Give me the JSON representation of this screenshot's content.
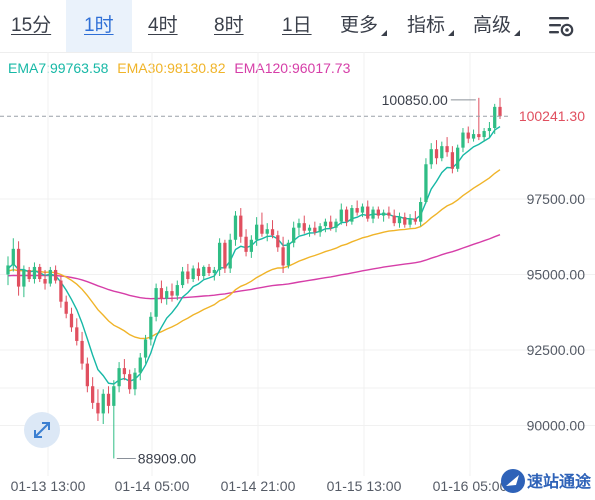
{
  "tabs": [
    {
      "label": "15分",
      "active": false
    },
    {
      "label": "1时",
      "active": true
    },
    {
      "label": "4时",
      "active": false
    },
    {
      "label": "8时",
      "active": false
    },
    {
      "label": "1日",
      "active": false
    },
    {
      "label": "更多",
      "active": false,
      "dropdown": true
    },
    {
      "label": "指标",
      "active": false,
      "dropdown": true
    },
    {
      "label": "高级",
      "active": false,
      "dropdown": true
    }
  ],
  "settings_icon": "chart-settings-icon",
  "ema": [
    {
      "label": "EMA7:99763.58",
      "color": "#17b8a6"
    },
    {
      "label": "EMA30:98130.82",
      "color": "#f0b429"
    },
    {
      "label": "EMA120:96017.73",
      "color": "#d63ea8"
    }
  ],
  "colors": {
    "up": "#2fbd85",
    "down": "#e04f5f",
    "accent": "#2f6fd6",
    "grid": "#f1f1f1"
  },
  "price_axis": {
    "labels": [
      "97500.00",
      "95000.00",
      "92500.00",
      "90000.00"
    ]
  },
  "time_axis": {
    "labels": [
      "01-13 13:00",
      "01-14 05:00",
      "01-14 21:00",
      "01-15 13:00",
      "01-16 05:00"
    ]
  },
  "high_label": "100850.00",
  "low_label": "88909.00",
  "current_price": "100241.30",
  "expand_icon": "expand-arrows-icon",
  "watermark": {
    "text": "速站通途",
    "logo": "rocket-logo-icon"
  },
  "chart_data": {
    "type": "candlestick",
    "y_axis": {
      "range": [
        89000,
        101500
      ]
    },
    "x_labels": [
      "01-13 13:00",
      "01-14 05:00",
      "01-14 21:00",
      "01-15 13:00",
      "01-16 05:00"
    ],
    "candles": [
      [
        95000,
        95600,
        94650,
        95300
      ],
      [
        95300,
        96200,
        95100,
        95850
      ],
      [
        95850,
        96100,
        94300,
        94600
      ],
      [
        94600,
        95300,
        94250,
        95150
      ],
      [
        95150,
        95250,
        94750,
        94850
      ],
      [
        94850,
        95400,
        94700,
        95250
      ],
      [
        95250,
        95350,
        94750,
        94850
      ],
      [
        94850,
        95150,
        94500,
        94700
      ],
      [
        94700,
        95250,
        94600,
        95150
      ],
      [
        95150,
        95300,
        94700,
        94800
      ],
      [
        94800,
        94950,
        93900,
        94100
      ],
      [
        94100,
        94300,
        93550,
        93700
      ],
      [
        93700,
        93900,
        93100,
        93250
      ],
      [
        93250,
        93550,
        92650,
        92800
      ],
      [
        92800,
        93100,
        91850,
        92050
      ],
      [
        92050,
        92250,
        91100,
        91300
      ],
      [
        91300,
        91600,
        90550,
        90750
      ],
      [
        90750,
        91200,
        90150,
        90400
      ],
      [
        90400,
        91200,
        90050,
        91050
      ],
      [
        91050,
        91300,
        90400,
        90650
      ],
      [
        90650,
        91500,
        88909,
        91300
      ],
      [
        91300,
        92100,
        91100,
        91900
      ],
      [
        91900,
        92200,
        91500,
        91700
      ],
      [
        91700,
        91850,
        91050,
        91200
      ],
      [
        91200,
        91900,
        91000,
        91750
      ],
      [
        91750,
        92400,
        91500,
        92250
      ],
      [
        92250,
        93000,
        92050,
        92850
      ],
      [
        92850,
        93750,
        92650,
        93600
      ],
      [
        93600,
        94700,
        93450,
        94550
      ],
      [
        94550,
        94800,
        94050,
        94200
      ],
      [
        94200,
        94600,
        94000,
        94450
      ],
      [
        94450,
        94700,
        94100,
        94300
      ],
      [
        94300,
        94800,
        94150,
        94650
      ],
      [
        94650,
        95250,
        94550,
        95100
      ],
      [
        95100,
        95350,
        94700,
        94850
      ],
      [
        94850,
        95300,
        94750,
        95200
      ],
      [
        95200,
        95400,
        94800,
        94950
      ],
      [
        94950,
        95300,
        94850,
        95250
      ],
      [
        95250,
        95350,
        94950,
        95050
      ],
      [
        95050,
        95250,
        94800,
        95150
      ],
      [
        95150,
        96200,
        94950,
        96050
      ],
      [
        96050,
        96150,
        95050,
        95200
      ],
      [
        95200,
        96350,
        95050,
        96150
      ],
      [
        96150,
        97100,
        95950,
        96950
      ],
      [
        96950,
        97200,
        96050,
        96250
      ],
      [
        96250,
        96500,
        95600,
        95750
      ],
      [
        95750,
        96300,
        95550,
        96150
      ],
      [
        96150,
        96900,
        95950,
        96650
      ],
      [
        96650,
        97050,
        96250,
        96350
      ],
      [
        96350,
        96700,
        96100,
        96500
      ],
      [
        96500,
        96800,
        96200,
        96300
      ],
      [
        96300,
        96450,
        95750,
        95900
      ],
      [
        95900,
        96250,
        95050,
        95300
      ],
      [
        95300,
        96150,
        95200,
        96050
      ],
      [
        96050,
        96750,
        95900,
        96550
      ],
      [
        96550,
        96850,
        96300,
        96700
      ],
      [
        96700,
        96950,
        96350,
        96450
      ],
      [
        96450,
        96650,
        96250,
        96550
      ],
      [
        96550,
        96750,
        96300,
        96400
      ],
      [
        96400,
        96700,
        96250,
        96600
      ],
      [
        96600,
        96850,
        96400,
        96750
      ],
      [
        96750,
        96950,
        96450,
        96550
      ],
      [
        96550,
        96850,
        96400,
        96750
      ],
      [
        96750,
        97350,
        96650,
        97150
      ],
      [
        97150,
        97250,
        96600,
        96750
      ],
      [
        96750,
        97300,
        96650,
        97200
      ],
      [
        97200,
        97450,
        96950,
        97050
      ],
      [
        97050,
        97350,
        96900,
        97250
      ],
      [
        97250,
        97450,
        96750,
        96850
      ],
      [
        96850,
        97250,
        96700,
        97150
      ],
      [
        97150,
        97250,
        96850,
        96950
      ],
      [
        96950,
        97150,
        96750,
        97050
      ],
      [
        97050,
        97250,
        96850,
        96950
      ],
      [
        96950,
        97150,
        96600,
        96700
      ],
      [
        96700,
        97050,
        96550,
        96900
      ],
      [
        96900,
        97050,
        96550,
        96650
      ],
      [
        96650,
        97000,
        96550,
        96850
      ],
      [
        96850,
        97100,
        96650,
        96750
      ],
      [
        96750,
        97550,
        96600,
        97400
      ],
      [
        97400,
        98850,
        97350,
        98650
      ],
      [
        98650,
        99350,
        98500,
        99150
      ],
      [
        99150,
        99450,
        98650,
        98850
      ],
      [
        98850,
        99400,
        98750,
        99250
      ],
      [
        99250,
        99550,
        98900,
        99050
      ],
      [
        99050,
        99250,
        98350,
        98500
      ],
      [
        98500,
        99300,
        98400,
        99200
      ],
      [
        99200,
        99850,
        99050,
        99700
      ],
      [
        99700,
        99900,
        99350,
        99500
      ],
      [
        99500,
        99800,
        99400,
        99650
      ],
      [
        99650,
        100850,
        99450,
        99550
      ],
      [
        99550,
        99850,
        99400,
        99750
      ],
      [
        99750,
        100050,
        99550,
        99850
      ],
      [
        99850,
        100650,
        99650,
        100550
      ],
      [
        100550,
        100850,
        100150,
        100241.3
      ]
    ]
  }
}
